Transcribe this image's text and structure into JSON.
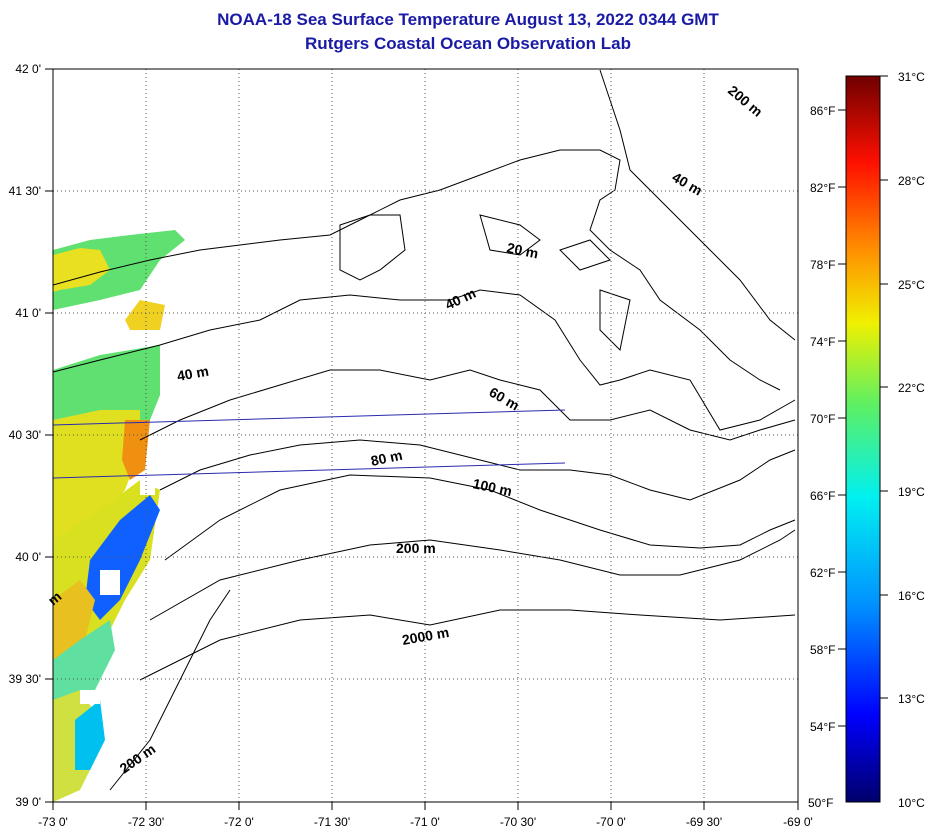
{
  "title": {
    "line1": "NOAA-18 Sea Surface Temperature August 13, 2022 0344 GMT",
    "line2": "Rutgers Coastal Ocean Observation Lab"
  },
  "axes": {
    "longitude_labels": [
      "-73 0'",
      "-72 30'",
      "-72 0'",
      "-71 30'",
      "-71 0'",
      "-70 30'",
      "-70 0'",
      "-69 30'",
      "-69 0'"
    ],
    "latitude_labels": [
      "42 0'",
      "41 30'",
      "41 0'",
      "40 30'",
      "40 0'",
      "39 30'",
      "39 0'"
    ]
  },
  "depth_contour_labels": [
    "200 m",
    "40 m",
    "20 m",
    "40 m",
    "40 m",
    "60 m",
    "80 m",
    "100 m",
    "200 m",
    "2000 m",
    "200 m",
    "m"
  ],
  "colorbar": {
    "celsius_labels": [
      "31°C",
      "28°C",
      "25°C",
      "22°C",
      "19°C",
      "16°C",
      "13°C",
      "10°C"
    ],
    "fahrenheit_labels": [
      "86°F",
      "82°F",
      "78°F",
      "74°F",
      "70°F",
      "66°F",
      "62°F",
      "58°F",
      "54°F",
      "50°F"
    ],
    "celsius_range": [
      10,
      31
    ]
  },
  "colors": {
    "title": "#1a1aa6",
    "coast": "#000000",
    "grid": "#555555",
    "cruise_track": "#2a2ab0"
  }
}
